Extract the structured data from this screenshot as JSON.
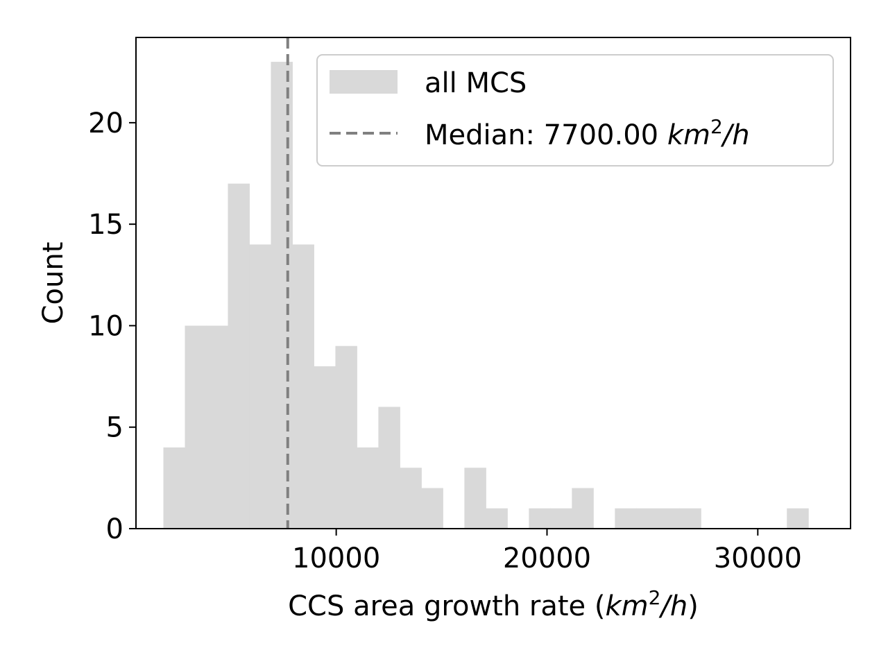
{
  "chart_data": {
    "type": "bar",
    "subtype": "histogram",
    "xlabel": {
      "text": "CCS area growth rate (",
      "italic_unit": "km",
      "superscript": "2",
      "italic_unit_tail": "/h",
      "close": ")"
    },
    "ylabel": "Count",
    "xlim": [
      500,
      34400
    ],
    "ylim": [
      0,
      24.2
    ],
    "xticks": [
      10000,
      20000,
      30000
    ],
    "xtick_labels": [
      "10000",
      "20000",
      "30000"
    ],
    "yticks": [
      0,
      5,
      10,
      15,
      20
    ],
    "ytick_labels": [
      "0",
      "5",
      "10",
      "15",
      "20"
    ],
    "bin_start": 1800,
    "bin_width": 1020,
    "counts": [
      4,
      10,
      10,
      17,
      14,
      23,
      14,
      8,
      9,
      4,
      6,
      3,
      2,
      0,
      3,
      1,
      0,
      1,
      1,
      2,
      0,
      1,
      1,
      1,
      1,
      0,
      0,
      0,
      0,
      1
    ],
    "bar_color": "#d9d9d9",
    "median": 7700,
    "median_color": "#808080",
    "legend": {
      "position": "upper right",
      "entries": [
        {
          "label": "all MCS",
          "kind": "patch",
          "color": "#d9d9d9"
        },
        {
          "label_prefix": "Median: 7700.00 ",
          "italic": "km",
          "superscript": "2",
          "italic_tail": "/h",
          "kind": "dashed-line",
          "color": "#808080"
        }
      ]
    },
    "grid": false
  }
}
